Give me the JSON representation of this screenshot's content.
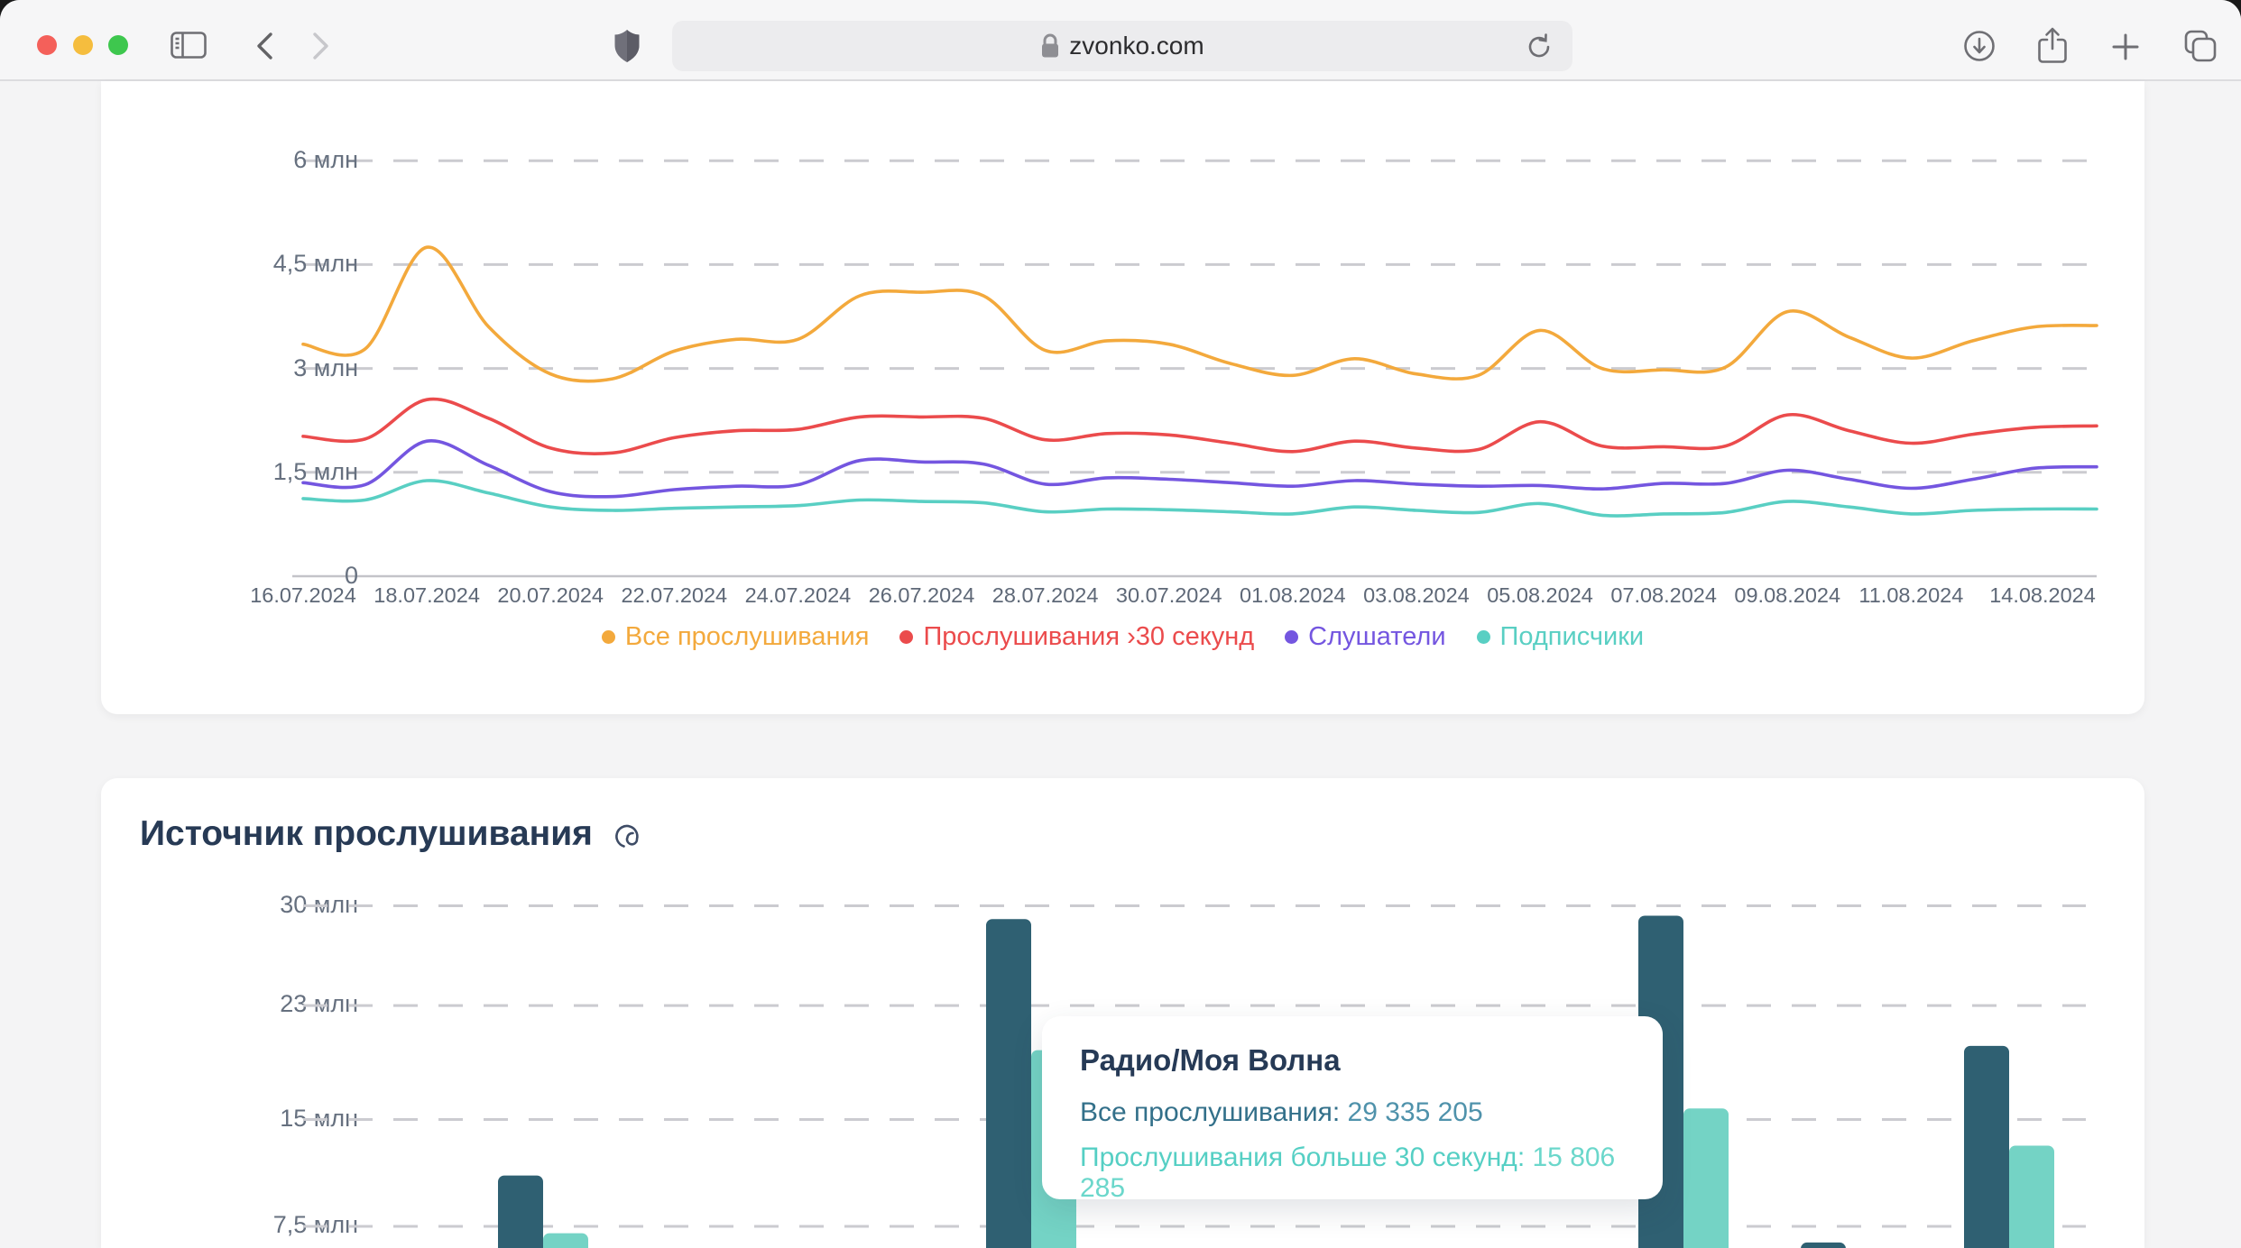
{
  "browser": {
    "url": "zvonko.com",
    "icons": [
      "close",
      "minimize",
      "zoom",
      "sidebar",
      "back",
      "forward",
      "shield",
      "padlock",
      "reload",
      "download",
      "share",
      "new-tab",
      "tab-overview"
    ]
  },
  "section2_title": "Источник прослушивания",
  "tooltip": {
    "title": "Радио/Моя Волна",
    "row1_label": "Все прослушивания",
    "row1_sep": ": ",
    "row1_value": "29 335 205",
    "row2_label": "Прослушивания больше 30 секунд",
    "row2_sep": ": ",
    "row2_value": "15 806 285"
  },
  "chart_data": [
    {
      "type": "line",
      "title": "",
      "y_ticks": [
        {
          "label": "6 млн",
          "value": 6
        },
        {
          "label": "4,5 млн",
          "value": 4.5
        },
        {
          "label": "3 млн",
          "value": 3
        },
        {
          "label": "1,5 млн",
          "value": 1.5
        },
        {
          "label": "0",
          "value": 0
        }
      ],
      "x_tick_labels": [
        "16.07.2024",
        "18.07.2024",
        "20.07.2024",
        "22.07.2024",
        "24.07.2024",
        "26.07.2024",
        "28.07.2024",
        "30.07.2024",
        "01.08.2024",
        "03.08.2024",
        "05.08.2024",
        "07.08.2024",
        "09.08.2024",
        "11.08.2024",
        "14.08.2024"
      ],
      "x_tick_days": [
        0,
        2,
        4,
        6,
        8,
        10,
        12,
        14,
        16,
        18,
        20,
        22,
        24,
        26,
        29
      ],
      "x_range_days": 30,
      "grid": "dashed-horizontal",
      "legend_position": "bottom-center",
      "series": [
        {
          "name": "Все прослушивания",
          "color": "#F3A93C",
          "values_mln": [
            3.35,
            3.28,
            4.75,
            3.6,
            2.92,
            2.85,
            3.25,
            3.42,
            3.42,
            4.05,
            4.1,
            4.05,
            3.26,
            3.4,
            3.35,
            3.07,
            2.9,
            3.14,
            2.92,
            2.9,
            3.55,
            3.0,
            2.98,
            3.02,
            3.82,
            3.45,
            3.15,
            3.4,
            3.6,
            3.62
          ]
        },
        {
          "name": "Прослушивания ›30 секунд",
          "color": "#EB4B4C",
          "values_mln": [
            2.02,
            1.98,
            2.55,
            2.28,
            1.85,
            1.78,
            2.0,
            2.1,
            2.12,
            2.3,
            2.3,
            2.28,
            1.97,
            2.06,
            2.04,
            1.92,
            1.8,
            1.95,
            1.85,
            1.83,
            2.23,
            1.88,
            1.87,
            1.88,
            2.33,
            2.1,
            1.92,
            2.05,
            2.15,
            2.17
          ]
        },
        {
          "name": "Слушатели",
          "color": "#7456E0",
          "values_mln": [
            1.35,
            1.32,
            1.95,
            1.6,
            1.22,
            1.15,
            1.25,
            1.3,
            1.32,
            1.67,
            1.65,
            1.62,
            1.33,
            1.42,
            1.4,
            1.35,
            1.3,
            1.38,
            1.33,
            1.3,
            1.31,
            1.26,
            1.34,
            1.34,
            1.53,
            1.4,
            1.27,
            1.4,
            1.56,
            1.58
          ]
        },
        {
          "name": "Подписчики",
          "color": "#59CFC3",
          "values_mln": [
            1.12,
            1.1,
            1.38,
            1.2,
            1.0,
            0.95,
            0.98,
            1.0,
            1.02,
            1.1,
            1.08,
            1.06,
            0.93,
            0.97,
            0.96,
            0.93,
            0.9,
            1.0,
            0.95,
            0.92,
            1.05,
            0.88,
            0.9,
            0.92,
            1.08,
            1.0,
            0.9,
            0.95,
            0.97,
            0.97
          ]
        }
      ]
    },
    {
      "type": "bar",
      "title": "Источник прослушивания",
      "y_ticks": [
        {
          "label": "30 млн",
          "value": 30
        },
        {
          "label": "23 млн",
          "value": 23
        },
        {
          "label": "15 млн",
          "value": 15
        },
        {
          "label": "7,5 млн",
          "value": 7.5
        }
      ],
      "grid": "dashed-horizontal",
      "categories": [
        "",
        "",
        "Радио/Моя Волна",
        "",
        ""
      ],
      "series": [
        {
          "name": "Все прослушивания",
          "color": "#2F6072",
          "values_mln": [
            11.1,
            29.1,
            29.335205,
            6.4,
            20.2
          ]
        },
        {
          "name": "Прослушивания больше 30 секунд",
          "color": "#74D3C5",
          "values_mln": [
            7.05,
            19.9,
            15.806285,
            null,
            13.2
          ]
        }
      ]
    }
  ]
}
